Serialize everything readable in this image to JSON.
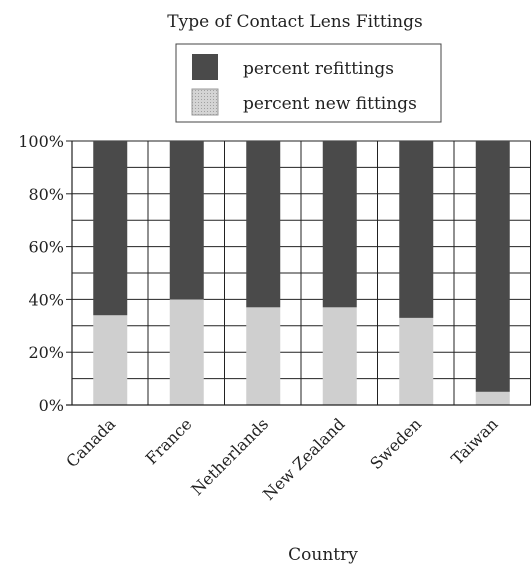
{
  "chart_data": {
    "type": "bar",
    "stacked": true,
    "title": "Type of Contact Lens Fittings",
    "xlabel": "Country",
    "ylabel": "",
    "ylim": [
      0,
      100
    ],
    "y_ticks": [
      "0%",
      "20%",
      "40%",
      "60%",
      "80%",
      "100%"
    ],
    "categories": [
      "Canada",
      "France",
      "Netherlands",
      "New Zealand",
      "Sweden",
      "Taiwan"
    ],
    "series": [
      {
        "name": "percent new fittings",
        "values": [
          34,
          40,
          37,
          37,
          33,
          5
        ]
      },
      {
        "name": "percent refittings",
        "values": [
          66,
          60,
          63,
          63,
          67,
          95
        ]
      }
    ],
    "legend": [
      {
        "label": "percent refittings"
      },
      {
        "label": "percent new fittings"
      }
    ],
    "legend_position": "top-center",
    "grid": true,
    "colors": {
      "refittings": "#4a4a4a",
      "new_fittings": "#cfcfcf",
      "grid": "#222222"
    }
  }
}
